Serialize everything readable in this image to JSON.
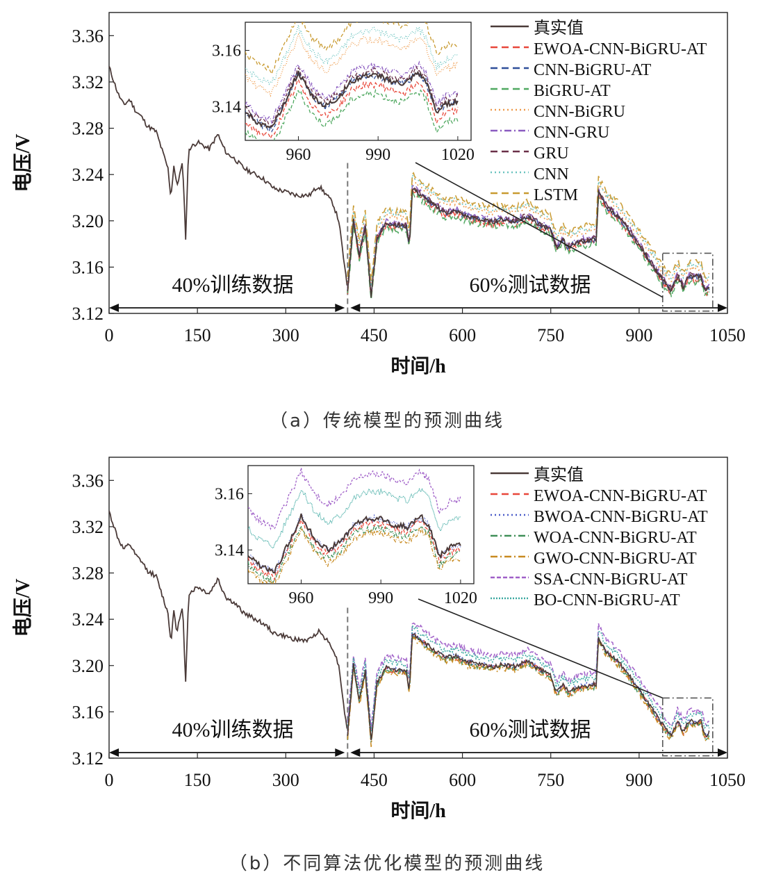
{
  "chart_data": [
    {
      "type": "line",
      "panel": "a",
      "caption": "（a）传统模型的预测曲线",
      "xlabel": "时间/h",
      "ylabel": "电压/V",
      "xlim": [
        0,
        1050
      ],
      "ylim": [
        3.12,
        3.38
      ],
      "xticks": [
        0,
        150,
        300,
        450,
        600,
        750,
        900,
        1050
      ],
      "yticks": [
        3.12,
        3.16,
        3.2,
        3.24,
        3.28,
        3.32,
        3.36
      ],
      "annotations": [
        "40%训练数据",
        "60%测试数据"
      ],
      "split_x": 405,
      "legend_position": "top-right",
      "actual": {
        "name": "真实值",
        "color": "#4a3a38",
        "x": [
          0,
          15,
          25,
          35,
          45,
          55,
          65,
          80,
          100,
          105,
          110,
          115,
          125,
          130,
          135,
          150,
          170,
          185,
          190,
          200,
          210,
          230,
          260,
          280,
          300,
          320,
          340,
          355,
          360,
          370,
          380,
          390,
          398,
          405
        ],
        "y": [
          3.333,
          3.31,
          3.3,
          3.305,
          3.295,
          3.29,
          3.282,
          3.277,
          3.245,
          3.22,
          3.248,
          3.23,
          3.25,
          3.185,
          3.262,
          3.268,
          3.262,
          3.275,
          3.268,
          3.258,
          3.255,
          3.245,
          3.237,
          3.228,
          3.225,
          3.222,
          3.222,
          3.23,
          3.228,
          3.222,
          3.215,
          3.2,
          3.168,
          3.14
        ]
      },
      "test_x": [
        405,
        415,
        425,
        435,
        445,
        455,
        470,
        490,
        505,
        510,
        515,
        530,
        550,
        570,
        590,
        610,
        630,
        650,
        670,
        690,
        710,
        730,
        750,
        760,
        770,
        780,
        790,
        800,
        815,
        828,
        830,
        845,
        865,
        885,
        905,
        925,
        945,
        955,
        965,
        975,
        985,
        995,
        1005,
        1012,
        1020
      ],
      "test_y": [
        3.14,
        3.2,
        3.17,
        3.195,
        3.135,
        3.185,
        3.198,
        3.196,
        3.195,
        3.178,
        3.228,
        3.222,
        3.214,
        3.207,
        3.208,
        3.203,
        3.201,
        3.199,
        3.201,
        3.199,
        3.204,
        3.197,
        3.192,
        3.176,
        3.184,
        3.177,
        3.18,
        3.182,
        3.183,
        3.184,
        3.225,
        3.212,
        3.203,
        3.19,
        3.175,
        3.16,
        3.145,
        3.14,
        3.152,
        3.143,
        3.152,
        3.151,
        3.152,
        3.139,
        3.142
      ],
      "series": [
        {
          "name": "EWOA-CNN-BiGRU-AT",
          "color": "#e8473a",
          "dash": "10,6",
          "offset": -0.002
        },
        {
          "name": "CNN-BiGRU-AT",
          "color": "#2f4f9a",
          "dash": "10,6",
          "offset": 0.0
        },
        {
          "name": "BiGRU-AT",
          "color": "#4fa860",
          "dash": "10,6",
          "offset": -0.004
        },
        {
          "name": "CNN-BiGRU",
          "color": "#ee9a4a",
          "dash": "2,4",
          "offset": 0.008
        },
        {
          "name": "CNN-GRU",
          "color": "#8a5bc0",
          "dash": "10,4,2,4",
          "offset": 0.002
        },
        {
          "name": "GRU",
          "color": "#6a3048",
          "dash": "10,6",
          "offset": 0.001
        },
        {
          "name": "CNN",
          "color": "#6bc4c0",
          "dash": "2,4",
          "offset": 0.01
        },
        {
          "name": "LSTM",
          "color": "#c89a30",
          "dash": "10,6",
          "offset": 0.013
        }
      ],
      "inset": {
        "xlim": [
          940,
          1025
        ],
        "ylim": [
          3.128,
          3.17
        ],
        "xticks": [
          960,
          990,
          1020
        ],
        "yticks": [
          3.14,
          3.16
        ],
        "actual_x": [
          940,
          945,
          950,
          955,
          960,
          965,
          970,
          975,
          980,
          985,
          990,
          995,
          1000,
          1005,
          1008,
          1012,
          1016,
          1020
        ],
        "actual_y": [
          3.138,
          3.134,
          3.132,
          3.142,
          3.152,
          3.144,
          3.14,
          3.143,
          3.149,
          3.151,
          3.151,
          3.149,
          3.148,
          3.152,
          3.149,
          3.138,
          3.141,
          3.142
        ]
      }
    },
    {
      "type": "line",
      "panel": "b",
      "caption": "（b）不同算法优化模型的预测曲线",
      "xlabel": "时间/h",
      "ylabel": "电压/V",
      "xlim": [
        0,
        1050
      ],
      "ylim": [
        3.12,
        3.38
      ],
      "xticks": [
        0,
        150,
        300,
        450,
        600,
        750,
        900,
        1050
      ],
      "yticks": [
        3.12,
        3.16,
        3.2,
        3.24,
        3.28,
        3.32,
        3.36
      ],
      "annotations": [
        "40%训练数据",
        "60%测试数据"
      ],
      "split_x": 405,
      "legend_position": "top-right",
      "actual": {
        "name": "真实值",
        "color": "#4a3a38",
        "x": [
          0,
          15,
          25,
          35,
          45,
          55,
          65,
          80,
          100,
          105,
          110,
          115,
          125,
          130,
          135,
          150,
          170,
          185,
          190,
          200,
          210,
          230,
          260,
          280,
          300,
          320,
          340,
          355,
          360,
          370,
          380,
          390,
          398,
          405
        ],
        "y": [
          3.333,
          3.31,
          3.3,
          3.305,
          3.295,
          3.29,
          3.282,
          3.277,
          3.245,
          3.22,
          3.248,
          3.23,
          3.25,
          3.185,
          3.262,
          3.268,
          3.262,
          3.275,
          3.268,
          3.258,
          3.255,
          3.245,
          3.237,
          3.228,
          3.225,
          3.222,
          3.222,
          3.23,
          3.228,
          3.222,
          3.215,
          3.2,
          3.168,
          3.14
        ]
      },
      "test_x": [
        405,
        415,
        425,
        435,
        445,
        455,
        470,
        490,
        505,
        510,
        515,
        530,
        550,
        570,
        590,
        610,
        630,
        650,
        670,
        690,
        710,
        730,
        750,
        760,
        770,
        780,
        790,
        800,
        815,
        828,
        830,
        845,
        865,
        885,
        905,
        925,
        945,
        955,
        965,
        975,
        985,
        995,
        1005,
        1012,
        1020
      ],
      "test_y": [
        3.14,
        3.2,
        3.17,
        3.195,
        3.135,
        3.185,
        3.198,
        3.196,
        3.195,
        3.178,
        3.228,
        3.222,
        3.214,
        3.207,
        3.208,
        3.203,
        3.201,
        3.199,
        3.201,
        3.199,
        3.204,
        3.197,
        3.192,
        3.176,
        3.184,
        3.177,
        3.18,
        3.182,
        3.183,
        3.184,
        3.225,
        3.212,
        3.203,
        3.19,
        3.175,
        3.16,
        3.145,
        3.14,
        3.152,
        3.143,
        3.152,
        3.151,
        3.152,
        3.139,
        3.142
      ],
      "series": [
        {
          "name": "EWOA-CNN-BiGRU-AT",
          "color": "#e8473a",
          "dash": "10,6",
          "offset": -0.001
        },
        {
          "name": "BWOA-CNN-BiGRU-AT",
          "color": "#4a5bc8",
          "dash": "2,4",
          "offset": 0.0
        },
        {
          "name": "WOA-CNN-BiGRU-AT",
          "color": "#3f8f58",
          "dash": "10,4,2,4",
          "offset": -0.002
        },
        {
          "name": "GWO-CNN-BiGRU-AT",
          "color": "#c88a20",
          "dash": "10,4,2,4",
          "offset": -0.003
        },
        {
          "name": "SSA-CNN-BiGRU-AT",
          "color": "#a060c8",
          "dash": "6,3",
          "offset": 0.01
        },
        {
          "name": "BO-CNN-BiGRU-AT",
          "color": "#3aa8a0",
          "dash": "2,2",
          "offset": 0.006
        }
      ],
      "inset": {
        "xlim": [
          940,
          1025
        ],
        "ylim": [
          3.128,
          3.17
        ],
        "xticks": [
          960,
          990,
          1020
        ],
        "yticks": [
          3.14,
          3.16
        ],
        "actual_x": [
          940,
          945,
          950,
          955,
          960,
          965,
          970,
          975,
          980,
          985,
          990,
          995,
          1000,
          1005,
          1008,
          1012,
          1016,
          1020
        ],
        "actual_y": [
          3.138,
          3.134,
          3.132,
          3.142,
          3.152,
          3.144,
          3.14,
          3.143,
          3.149,
          3.151,
          3.151,
          3.149,
          3.148,
          3.152,
          3.149,
          3.138,
          3.141,
          3.142
        ]
      }
    }
  ]
}
